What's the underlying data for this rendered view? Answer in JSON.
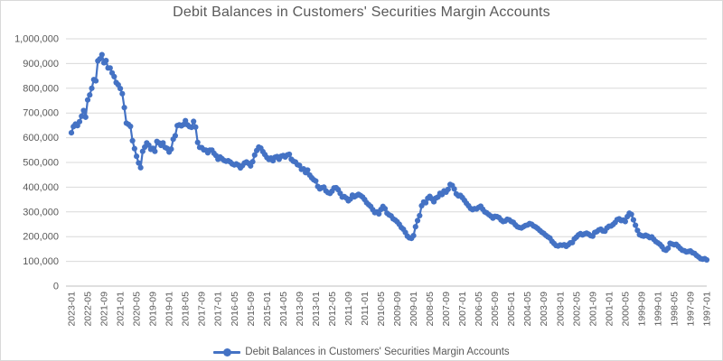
{
  "title": "Debit Balances in Customers' Securities Margin Accounts",
  "legend": {
    "label": "Debit Balances in Customers' Securities Margin Accounts",
    "position": "bottom"
  },
  "colors": {
    "series": "#4472C4",
    "text": "#595959",
    "grid": "#D9D9D9",
    "axis": "#BFBFBF",
    "background": "#FFFFFF"
  },
  "axes": {
    "y_tick_labels": [
      "1,000,000",
      "900,000",
      "800,000",
      "700,000",
      "600,000",
      "500,000",
      "400,000",
      "300,000",
      "200,000",
      "100,000",
      "0"
    ],
    "x_tick_labels": [
      "2023-01",
      "2022-05",
      "2021-09",
      "2021-01",
      "2020-05",
      "2019-09",
      "2019-01",
      "2018-05",
      "2017-09",
      "2017-01",
      "2016-05",
      "2015-09",
      "2015-01",
      "2014-05",
      "2013-09",
      "2013-01",
      "2012-05",
      "2011-09",
      "2011-01",
      "2010-05",
      "2009-09",
      "2009-01",
      "2008-05",
      "2007-09",
      "2007-01",
      "2006-05",
      "2005-09",
      "2005-01",
      "2004-05",
      "2003-09",
      "2003-01",
      "2002-05",
      "2001-09",
      "2001-01",
      "2000-05",
      "1999-09",
      "1999-01",
      "1998-05",
      "1997-09",
      "1997-01"
    ]
  },
  "chart_data": {
    "type": "line",
    "title": "Debit Balances in Customers' Securities Margin Accounts",
    "xlabel": "",
    "ylabel": "",
    "ylim": [
      0,
      1000000
    ],
    "y_tick_step": 100000,
    "grid": true,
    "legend_position": "bottom",
    "x_axis_note": "monthly dates shown newest-to-oldest (reversed), 2023-01 at left to 1997-01 at right, tick label every 8th month",
    "x_start": "2023-01",
    "x_end": "1997-01",
    "x_step_months": -1,
    "x_tick_every": 8,
    "categories_ticks": [
      "2023-01",
      "2022-05",
      "2021-09",
      "2021-01",
      "2020-05",
      "2019-09",
      "2019-01",
      "2018-05",
      "2017-09",
      "2017-01",
      "2016-05",
      "2015-09",
      "2015-01",
      "2014-05",
      "2013-09",
      "2013-01",
      "2012-05",
      "2011-09",
      "2011-01",
      "2010-05",
      "2009-09",
      "2009-01",
      "2008-05",
      "2007-09",
      "2007-01",
      "2006-05",
      "2005-09",
      "2005-01",
      "2004-05",
      "2003-09",
      "2003-01",
      "2002-05",
      "2001-09",
      "2001-01",
      "2000-05",
      "1999-09",
      "1999-01",
      "1998-05",
      "1997-09",
      "1997-01"
    ],
    "series": [
      {
        "name": "Debit Balances in Customers' Securities Margin Accounts",
        "color": "#4472C4",
        "marker": "circle",
        "values": [
          620000,
          645000,
          655000,
          649000,
          665000,
          687000,
          710000,
          683000,
          753000,
          773000,
          800000,
          835000,
          830000,
          911000,
          919000,
          936000,
          903000,
          912000,
          882000,
          882000,
          862000,
          847000,
          823000,
          814000,
          799000,
          778000,
          722000,
          659000,
          654000,
          646000,
          588000,
          556000,
          525000,
          498000,
          479000,
          545000,
          562000,
          579000,
          570000,
          553000,
          557000,
          545000,
          585000,
          579000,
          569000,
          579000,
          561000,
          557000,
          542000,
          554000,
          594000,
          608000,
          649000,
          652000,
          648000,
          653000,
          669000,
          652000,
          645000,
          642000,
          666000,
          643000,
          581000,
          561000,
          560000,
          551000,
          550000,
          539000,
          550000,
          550000,
          537000,
          528000,
          513000,
          522000,
          515000,
          508000,
          505000,
          507000,
          502000,
          494000,
          490000,
          494000,
          489000,
          478000,
          487000,
          498000,
          502000,
          496000,
          486000,
          503000,
          530000,
          548000,
          562000,
          558000,
          544000,
          532000,
          520000,
          512000,
          518000,
          507000,
          521000,
          524000,
          513000,
          525000,
          528000,
          522000,
          530000,
          533000,
          513000,
          505000,
          502000,
          491000,
          488000,
          472000,
          474000,
          459000,
          469000,
          449000,
          438000,
          430000,
          425000,
          403000,
          393000,
          398000,
          400000,
          385000,
          378000,
          375000,
          384000,
          397000,
          398000,
          390000,
          375000,
          360000,
          362000,
          356000,
          345000,
          352000,
          368000,
          361000,
          366000,
          371000,
          366000,
          360000,
          350000,
          337000,
          329000,
          322000,
          309000,
          297000,
          300000,
          292000,
          310000,
          322000,
          313000,
          295000,
          288000,
          284000,
          272000,
          267000,
          260000,
          250000,
          237000,
          230000,
          217000,
          202000,
          195000,
          193000,
          204000,
          240000,
          265000,
          285000,
          325000,
          340000,
          337000,
          355000,
          363000,
          353000,
          341000,
          356000,
          360000,
          375000,
          370000,
          385000,
          380000,
          391000,
          411000,
          407000,
          393000,
          373000,
          365000,
          367000,
          358000,
          347000,
          335000,
          325000,
          314000,
          309000,
          313000,
          312000,
          318000,
          323000,
          311000,
          300000,
          296000,
          289000,
          283000,
          275000,
          282000,
          281000,
          277000,
          267000,
          261000,
          263000,
          270000,
          268000,
          261000,
          258000,
          248000,
          240000,
          237000,
          235000,
          240000,
          245000,
          247000,
          253000,
          250000,
          243000,
          239000,
          233000,
          225000,
          218000,
          213000,
          205000,
          199000,
          194000,
          181000,
          172000,
          164000,
          162000,
          166000,
          165000,
          167000,
          161000,
          167000,
          175000,
          176000,
          191000,
          198000,
          207000,
          212000,
          207000,
          211000,
          214000,
          210000,
          204000,
          202000,
          217000,
          220000,
          227000,
          230000,
          223000,
          222000,
          235000,
          242000,
          243000,
          249000,
          257000,
          269000,
          272000,
          265000,
          267000,
          261000,
          281000,
          295000,
          290000,
          268000,
          246000,
          225000,
          208000,
          204000,
          202000,
          206000,
          202000,
          196000,
          199000,
          189000,
          180000,
          175000,
          169000,
          160000,
          148000,
          145000,
          153000,
          173000,
          170000,
          167000,
          169000,
          161000,
          152000,
          145000,
          143000,
          138000,
          140000,
          142000,
          135000,
          132000,
          124000,
          118000,
          111000,
          109000,
          111000,
          106000
        ]
      }
    ]
  }
}
